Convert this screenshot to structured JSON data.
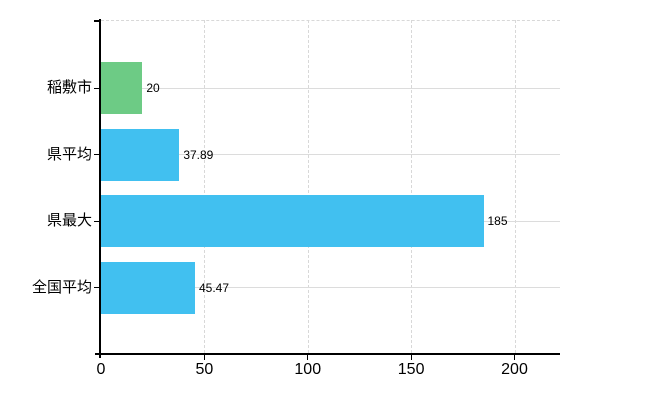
{
  "chart_data": {
    "type": "bar",
    "orientation": "horizontal",
    "categories": [
      "稲敷市",
      "県平均",
      "県最大",
      "全国平均"
    ],
    "values": [
      20,
      37.89,
      185,
      45.47
    ],
    "value_labels": [
      "20",
      "37.89",
      "185",
      "45.47"
    ],
    "series": [
      {
        "name": "稲敷市",
        "value": 20,
        "color": "#6dcb85"
      },
      {
        "name": "県平均",
        "value": 37.89,
        "color": "#41c0f0"
      },
      {
        "name": "県最大",
        "value": 185,
        "color": "#41c0f0"
      },
      {
        "name": "全国平均",
        "value": 45.47,
        "color": "#41c0f0"
      }
    ],
    "bar_colors": [
      "#6dcb85",
      "#41c0f0",
      "#41c0f0",
      "#41c0f0"
    ],
    "x_tick_labels": [
      "0",
      "50",
      "100",
      "150",
      "200"
    ],
    "x_tick_values": [
      0,
      50,
      100,
      150,
      200
    ],
    "xlim": [
      0,
      222
    ],
    "grid": true,
    "legend_position": "none",
    "colors": {
      "background": "#ffffff",
      "axis": "#000000",
      "gridline": "#d8d8d8",
      "text": "#000000",
      "highlight_bar": "#6dcb85",
      "default_bar": "#41c0f0"
    }
  }
}
